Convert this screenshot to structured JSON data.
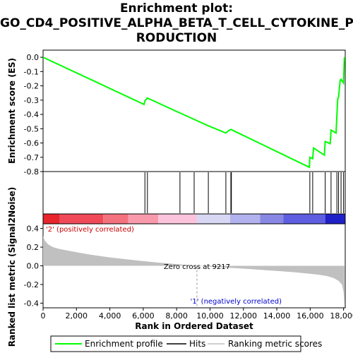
{
  "chart_data": {
    "type": "line",
    "title_lines": [
      "Enrichment plot:",
      "GO_CD4_POSITIVE_ALPHA_BETA_T_CELL_CYTOKINE_P",
      "RODUCTION"
    ],
    "es_panel": {
      "ylabel": "Enrichment score (ES)",
      "ylim": [
        -0.8,
        0.05
      ],
      "yticks": [
        0.0,
        -0.1,
        -0.2,
        -0.3,
        -0.4,
        -0.5,
        -0.6,
        -0.7,
        -0.8
      ],
      "ytick_labels": [
        "0.0",
        "-0.1",
        "-0.2",
        "-0.3",
        "-0.4",
        "-0.5",
        "-0.6",
        "-0.7",
        "-0.8"
      ],
      "series": [
        {
          "name": "Enrichment profile",
          "color": "#00ff00",
          "x": [
            0,
            6050,
            6100,
            6250,
            8100,
            8200,
            9050,
            9900,
            10950,
            11100,
            11250,
            15950,
            15980,
            16150,
            16200,
            16850,
            16900,
            17200,
            17250,
            17550,
            17600,
            17650,
            17700,
            17800,
            17850,
            18000,
            18050
          ],
          "y": [
            0.0,
            -0.33,
            -0.305,
            -0.285,
            -0.385,
            -0.39,
            -0.435,
            -0.48,
            -0.53,
            -0.515,
            -0.505,
            -0.77,
            -0.7,
            -0.71,
            -0.635,
            -0.685,
            -0.59,
            -0.605,
            -0.51,
            -0.53,
            -0.405,
            -0.29,
            -0.28,
            -0.16,
            -0.155,
            -0.18,
            0.0
          ]
        }
      ]
    },
    "hits": {
      "name": "Hits",
      "positions": [
        6100,
        6250,
        8200,
        9050,
        9900,
        10950,
        11250,
        11280,
        15980,
        16150,
        16900,
        17250,
        17600,
        17700,
        17850,
        18000
      ]
    },
    "heat_bar": {
      "segments": [
        {
          "start": 0,
          "end": 1000,
          "color": "#e8242c"
        },
        {
          "start": 1000,
          "end": 3600,
          "color": "#f04a58"
        },
        {
          "start": 3600,
          "end": 5100,
          "color": "#f4727e"
        },
        {
          "start": 5100,
          "end": 6900,
          "color": "#f89aac"
        },
        {
          "start": 6900,
          "end": 9217,
          "color": "#fcc4dc"
        },
        {
          "start": 9217,
          "end": 11200,
          "color": "#d8d8f4"
        },
        {
          "start": 11200,
          "end": 13000,
          "color": "#b2b2ee"
        },
        {
          "start": 13000,
          "end": 14400,
          "color": "#8888e4"
        },
        {
          "start": 14400,
          "end": 16900,
          "color": "#5e5ee0"
        },
        {
          "start": 16900,
          "end": 18100,
          "color": "#2020c8"
        }
      ]
    },
    "metric_panel": {
      "ylabel": "Ranked list metric (Signal2Noise)",
      "xlabel": "Rank in Ordered Dataset",
      "ylim": [
        -0.45,
        0.45
      ],
      "yticks": [
        0.4,
        0.2,
        0.0,
        -0.2,
        -0.4
      ],
      "ytick_labels": [
        "0.4",
        "0.2",
        "0.0",
        "-0.2",
        "-0.4"
      ],
      "xlim": [
        0,
        18100
      ],
      "xticks": [
        0,
        2000,
        4000,
        6000,
        8000,
        10000,
        12000,
        14000,
        16000,
        18000
      ],
      "xtick_labels": [
        "0",
        "2,000",
        "4,000",
        "6,000",
        "8,000",
        "10,000",
        "12,000",
        "14,000",
        "16,000",
        "18,000"
      ],
      "profile_x": [
        0,
        100,
        300,
        600,
        1000,
        2000,
        3000,
        4000,
        5000,
        6000,
        7000,
        8000,
        9217,
        10000,
        11000,
        12000,
        13000,
        14000,
        15000,
        16000,
        16500,
        17000,
        17400,
        17700,
        17900,
        18000,
        18050
      ],
      "profile_y": [
        0.32,
        0.27,
        0.23,
        0.2,
        0.18,
        0.145,
        0.115,
        0.09,
        0.07,
        0.05,
        0.033,
        0.018,
        0.0,
        -0.01,
        -0.02,
        -0.03,
        -0.042,
        -0.055,
        -0.068,
        -0.085,
        -0.095,
        -0.11,
        -0.13,
        -0.16,
        -0.2,
        -0.28,
        -0.42
      ],
      "zero_cross": 9217,
      "zero_cross_label": "Zero cross at 9217",
      "pos_label": "'2' (positively correlated)",
      "neg_label": "'1' (negatively correlated)"
    },
    "legend": {
      "placement": "bottom",
      "entries": [
        {
          "label": "Enrichment profile",
          "color": "#00ff00"
        },
        {
          "label": "Hits",
          "color": "#000000"
        },
        {
          "label": "Ranking metric scores",
          "color": "#c0c0c0"
        }
      ]
    }
  }
}
